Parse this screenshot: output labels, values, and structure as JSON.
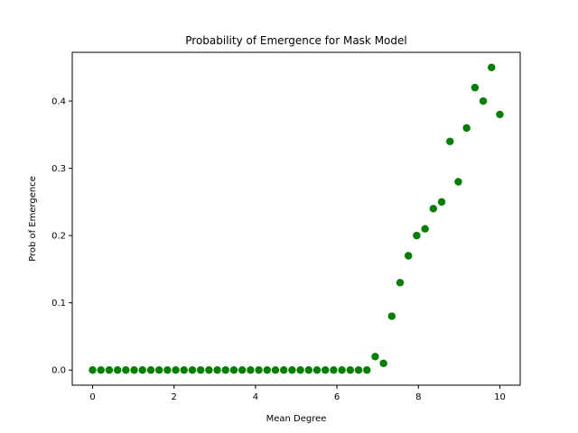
{
  "chart_data": {
    "type": "scatter",
    "title": "Probability of Emergence for Mask Model",
    "xlabel": "Mean Degree",
    "ylabel": "Prob of Emergence",
    "xlim": [
      -0.5,
      10.5
    ],
    "ylim": [
      -0.0225,
      0.4725
    ],
    "xticks": [
      0,
      2,
      4,
      6,
      8,
      10
    ],
    "xtick_labels": [
      "0",
      "2",
      "4",
      "6",
      "8",
      "10"
    ],
    "yticks": [
      0.0,
      0.1,
      0.2,
      0.3,
      0.4
    ],
    "ytick_labels": [
      "0.0",
      "0.1",
      "0.2",
      "0.3",
      "0.4"
    ],
    "grid": false,
    "marker_color": "#008000",
    "series": [
      {
        "x": [
          0.0,
          0.204,
          0.408,
          0.612,
          0.816,
          1.02,
          1.224,
          1.429,
          1.633,
          1.837,
          2.041,
          2.245,
          2.449,
          2.653,
          2.857,
          3.061,
          3.265,
          3.469,
          3.673,
          3.878,
          4.082,
          4.286,
          4.49,
          4.694,
          4.898,
          5.102,
          5.306,
          5.51,
          5.714,
          5.918,
          6.122,
          6.327,
          6.531,
          6.735,
          6.939,
          7.143,
          7.347,
          7.551,
          7.755,
          7.959,
          8.163,
          8.367,
          8.571,
          8.776,
          8.98,
          9.184,
          9.388,
          9.592,
          9.796,
          10.0
        ],
        "y": [
          0,
          0,
          0,
          0,
          0,
          0,
          0,
          0,
          0,
          0,
          0,
          0,
          0,
          0,
          0,
          0,
          0,
          0,
          0,
          0,
          0,
          0,
          0,
          0,
          0,
          0,
          0,
          0,
          0,
          0,
          0,
          0,
          0,
          0,
          0.02,
          0.01,
          0.08,
          0.13,
          0.17,
          0.2,
          0.21,
          0.24,
          0.25,
          0.34,
          0.28,
          0.36,
          0.42,
          0.4,
          0.45,
          0.38
        ]
      }
    ]
  }
}
